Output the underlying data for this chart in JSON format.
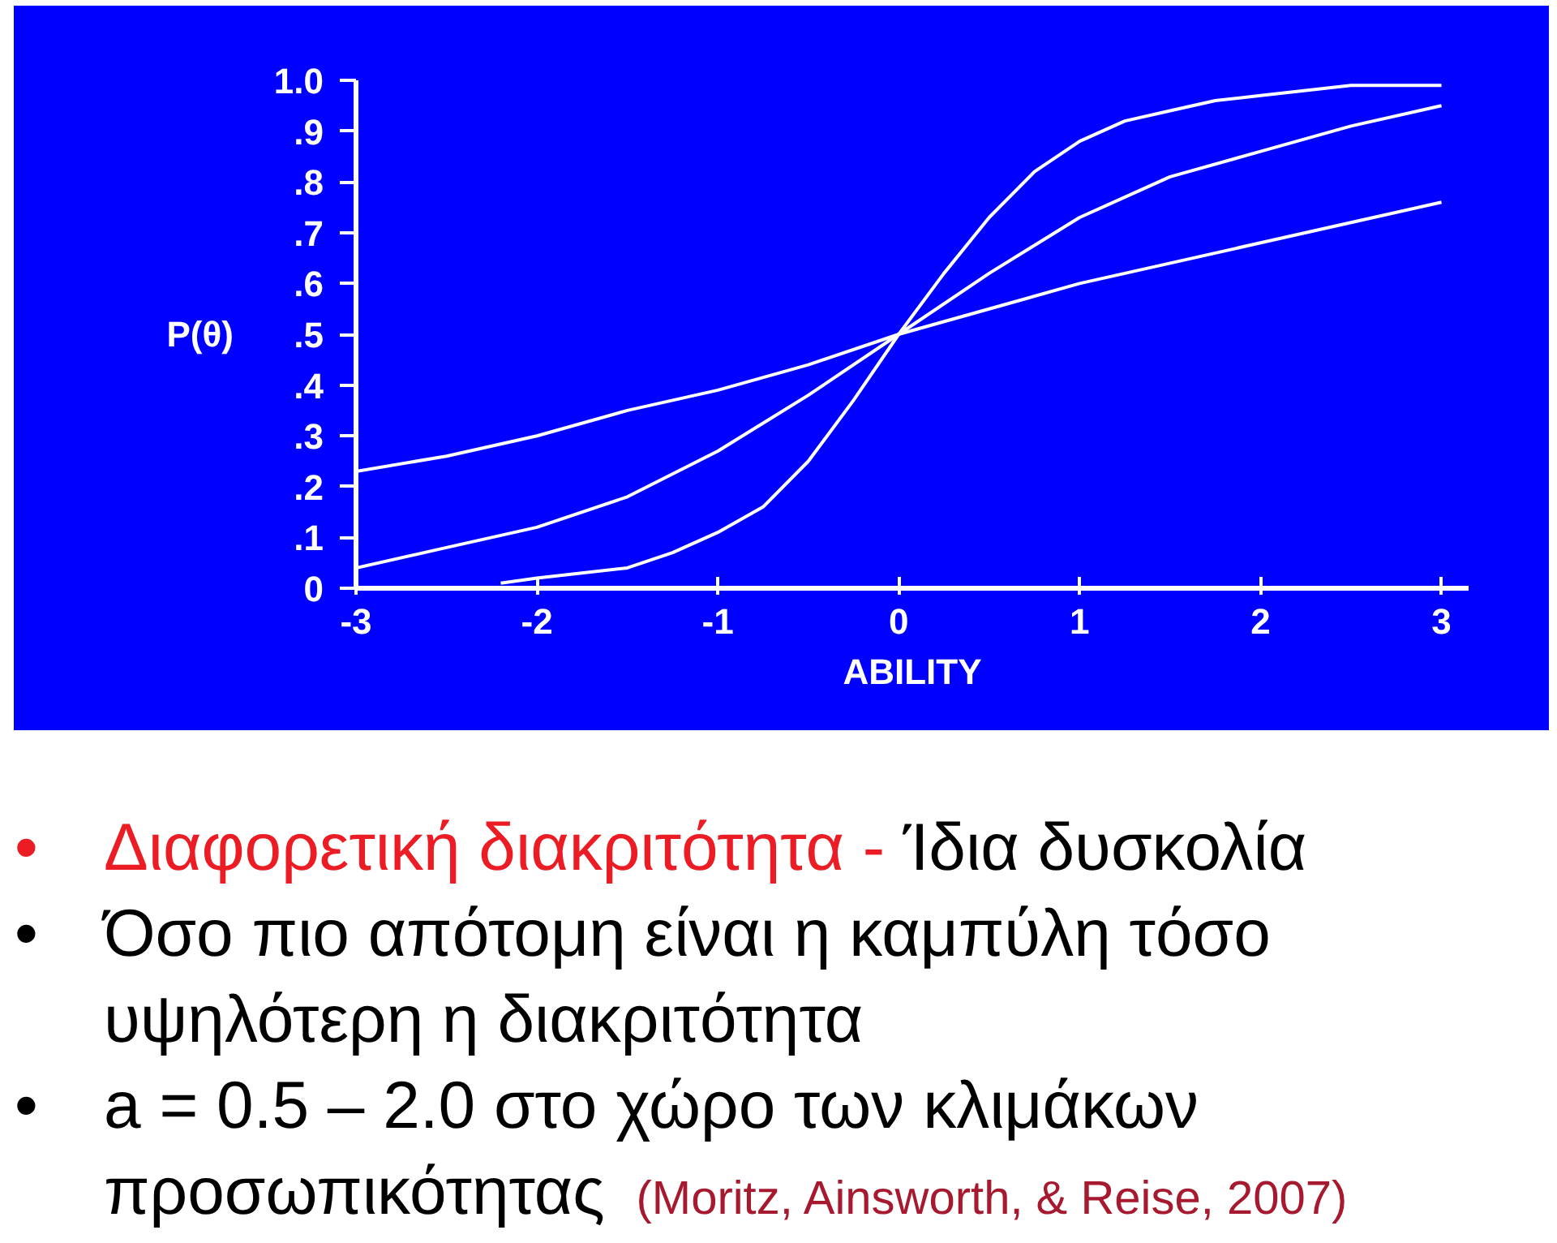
{
  "chart_data": {
    "type": "line",
    "xlabel": "ABILITY",
    "ylabel": "P(θ)",
    "xlim": [
      -3,
      3.15
    ],
    "ylim": [
      0,
      1
    ],
    "xticks": [
      -3,
      -2,
      -1,
      0,
      1,
      2,
      3
    ],
    "yticks": [
      0,
      {
        "value": 0.1,
        "label": ".1"
      },
      {
        "value": 0.2,
        "label": ".2"
      },
      {
        "value": 0.3,
        "label": ".3"
      },
      {
        "value": 0.4,
        "label": ".4"
      },
      {
        "value": 0.5,
        "label": ".5"
      },
      {
        "value": 0.6,
        "label": ".6"
      },
      {
        "value": 0.7,
        "label": ".7"
      },
      {
        "value": 0.8,
        "label": ".8"
      },
      {
        "value": 0.9,
        "label": ".9"
      },
      {
        "value": 1,
        "label": "1.0"
      }
    ],
    "series": [
      {
        "color": "#ffffff",
        "x": [
          -3,
          -2.5,
          -2,
          -1.5,
          -1,
          -0.5,
          0,
          0.5,
          1,
          1.5,
          2,
          2.5,
          3
        ],
        "values": [
          0.23,
          0.26,
          0.3,
          0.35,
          0.39,
          0.44,
          0.5,
          0.55,
          0.6,
          0.64,
          0.68,
          0.72,
          0.76
        ]
      },
      {
        "color": "#ffffff",
        "x": [
          -3,
          -2.5,
          -2,
          -1.5,
          -1,
          -0.5,
          0,
          0.5,
          1,
          1.5,
          2,
          2.5,
          3
        ],
        "values": [
          0.04,
          0.08,
          0.12,
          0.18,
          0.27,
          0.38,
          0.5,
          0.62,
          0.73,
          0.81,
          0.86,
          0.91,
          0.95
        ]
      },
      {
        "color": "#ffffff",
        "x": [
          -2.2,
          -2,
          -1.5,
          -1.25,
          -1,
          -0.75,
          -0.5,
          -0.25,
          0,
          0.25,
          0.5,
          0.75,
          1,
          1.25,
          1.5,
          1.75,
          2,
          2.5,
          3
        ],
        "values": [
          0.01,
          0.02,
          0.04,
          0.07,
          0.11,
          0.16,
          0.25,
          0.37,
          0.5,
          0.62,
          0.73,
          0.82,
          0.88,
          0.92,
          0.94,
          0.96,
          0.97,
          0.99,
          0.99
        ]
      }
    ],
    "annotations": [
      "•",
      "Διαφορετική διακριτότητα -",
      "Ίδια δυσκολία",
      "•",
      "Όσο πιο απότομη είναι η καμπύλη τόσο υψηλότερη η διακριτότητα",
      "•",
      "a = 0.5 – 2.0 στο χώρο των κλιμάκων",
      "προσωπικότητας",
      "(Moritz, Ainsworth, & Reise, 2007)"
    ]
  }
}
